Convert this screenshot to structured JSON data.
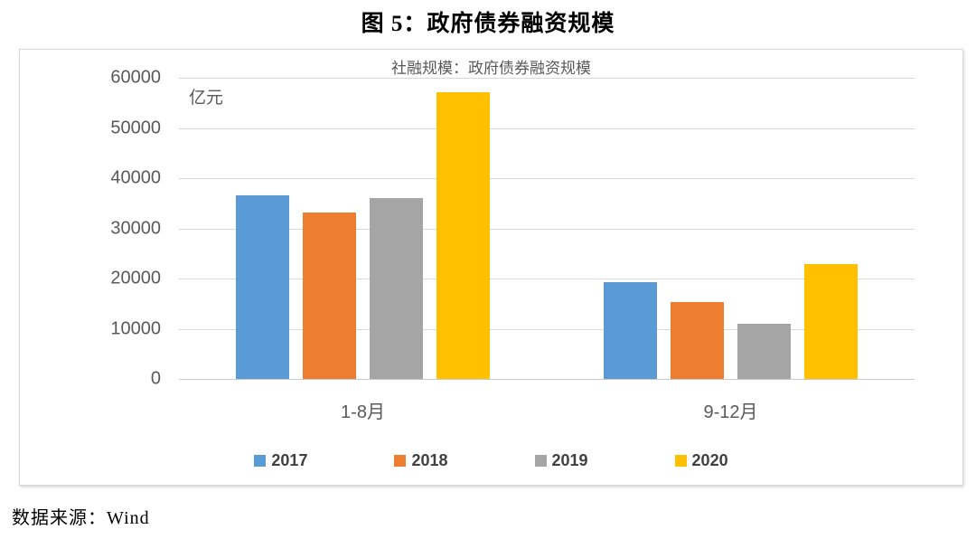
{
  "page": {
    "figure_title": "图 5：政府债券融资规模",
    "source_text": "数据来源：Wind"
  },
  "chart": {
    "title": "社融规模：政府债券融资规模",
    "unit_label": "亿元"
  },
  "chart_data": {
    "type": "bar",
    "title": "社融规模：政府债券融资规模",
    "unit": "亿元",
    "categories": [
      "1-8月",
      "9-12月"
    ],
    "series": [
      {
        "name": "2017",
        "color": "#5B9BD5",
        "values": [
          36600,
          19200
        ]
      },
      {
        "name": "2018",
        "color": "#ED7D31",
        "values": [
          33100,
          15400
        ]
      },
      {
        "name": "2019",
        "color": "#A5A5A5",
        "values": [
          36000,
          11000
        ]
      },
      {
        "name": "2020",
        "color": "#FFC000",
        "values": [
          57200,
          22900
        ]
      }
    ],
    "ylim": [
      0,
      60000
    ],
    "yticks": [
      0,
      10000,
      20000,
      30000,
      40000,
      50000,
      60000
    ],
    "grid": true,
    "legend_position": "bottom",
    "gridline_color": "#d9d9d9",
    "text_color": "#595959"
  }
}
